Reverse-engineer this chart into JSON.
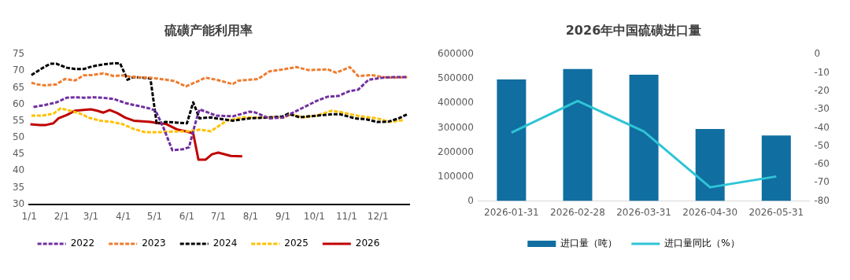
{
  "chart_data": [
    {
      "type": "line",
      "title": "硫磺产能利用率",
      "legend": "bottom",
      "grid": false,
      "xlim": [
        "--01-01",
        "--12-31"
      ],
      "xticks": [
        {
          "value": "--01-01",
          "label": "1/1"
        },
        {
          "value": "--02-01",
          "label": "2/1"
        },
        {
          "value": "--03-01",
          "label": "3/1"
        },
        {
          "value": "--04-01",
          "label": "4/1"
        },
        {
          "value": "--05-01",
          "label": "5/1"
        },
        {
          "value": "--06-01",
          "label": "6/1"
        },
        {
          "value": "--07-01",
          "label": "7/1"
        },
        {
          "value": "--08-01",
          "label": "8/1"
        },
        {
          "value": "--09-01",
          "label": "9/1"
        },
        {
          "value": "--10-01",
          "label": "10/1"
        },
        {
          "value": "--11-01",
          "label": "11/1"
        },
        {
          "value": "--12-01",
          "label": "12/1"
        }
      ],
      "ylim": [
        30,
        75
      ],
      "yticks": [
        30,
        35,
        40,
        45,
        50,
        55,
        60,
        65,
        70,
        75
      ],
      "marker": "none",
      "series": [
        {
          "name": "2022",
          "color": "#7030a0",
          "line_style": "dashed",
          "x": [
            "--01-05",
            "--01-16",
            "--01-27",
            "--02-06",
            "--02-14",
            "--02-22",
            "--03-05",
            "--03-15",
            "--03-23",
            "--04-03",
            "--04-11",
            "--04-16",
            "--04-27",
            "--05-02",
            "--05-10",
            "--05-18",
            "--05-28",
            "--06-03",
            "--06-09",
            "--06-13",
            "--06-24",
            "--06-29",
            "--07-15",
            "--07-31",
            "--08-05",
            "--08-19",
            "--09-01",
            "--09-17",
            "--10-03",
            "--10-14",
            "--10-24",
            "--11-04",
            "--11-12",
            "--11-22",
            "--12-06",
            "--12-16",
            "--12-29"
          ],
          "values": [
            59.2,
            59.8,
            60.6,
            62,
            62.1,
            62,
            62.1,
            61.9,
            61.6,
            60.4,
            59.8,
            59.5,
            58.7,
            58.1,
            52.6,
            46.2,
            46.5,
            47.1,
            54.3,
            58.5,
            57.2,
            56.6,
            56.4,
            57.8,
            57.6,
            55.8,
            56,
            58.5,
            61,
            62.3,
            62.5,
            64,
            64.4,
            67.4,
            68,
            68.2,
            68.2
          ]
        },
        {
          "name": "2023",
          "color": "#ed7d31",
          "line_style": "dashed",
          "x": [
            "--01-03",
            "--01-08",
            "--01-16",
            "--01-27",
            "--02-04",
            "--02-14",
            "--02-22",
            "--03-02",
            "--03-13",
            "--03-23",
            "--03-31",
            "--04-11",
            "--04-27",
            "--05-12",
            "--05-20",
            "--05-31",
            "--06-08",
            "--06-19",
            "--06-29",
            "--07-15",
            "--07-20",
            "--08-08",
            "--08-19",
            "--09-01",
            "--09-14",
            "--09-25",
            "--10-14",
            "--10-22",
            "--11-04",
            "--11-12",
            "--11-25",
            "--12-06",
            "--12-16",
            "--12-29"
          ],
          "values": [
            66.5,
            66,
            65.7,
            66,
            67.6,
            67.2,
            68.7,
            68.8,
            69.3,
            68.5,
            68.7,
            68.2,
            68,
            67.4,
            67,
            65.4,
            66.5,
            68,
            67.4,
            66.1,
            67.1,
            67.6,
            69.9,
            70.5,
            71.2,
            70.3,
            70.5,
            69.5,
            71.2,
            68.5,
            68.8,
            68.2,
            68,
            68.2
          ]
        },
        {
          "name": "2024",
          "color": "#000000",
          "line_style": "dashed",
          "x": [
            "--01-03",
            "--01-13",
            "--01-21",
            "--01-27",
            "--02-06",
            "--02-14",
            "--02-22",
            "--03-02",
            "--03-13",
            "--03-22",
            "--03-29",
            "--04-05",
            "--04-11",
            "--04-19",
            "--04-27",
            "--05-03",
            "--05-12",
            "--05-23",
            "--06-01",
            "--06-07",
            "--06-13",
            "--06-24",
            "--06-29",
            "--07-15",
            "--07-31",
            "--08-16",
            "--09-01",
            "--09-06",
            "--09-17",
            "--10-03",
            "--10-18",
            "--10-26",
            "--11-09",
            "--11-20",
            "--11-30",
            "--12-11",
            "--12-21",
            "--12-29"
          ],
          "values": [
            68.8,
            70.8,
            72.2,
            72.2,
            71,
            70.6,
            70.6,
            71.4,
            72,
            72.3,
            72.3,
            67.4,
            68.2,
            68,
            67.8,
            54.3,
            54.7,
            54.5,
            54.3,
            60.6,
            55.8,
            56.1,
            55.8,
            55.1,
            55.8,
            56,
            56.4,
            57.2,
            56.1,
            56.6,
            57,
            57,
            55.8,
            55.5,
            54.7,
            54.8,
            55.8,
            57
          ]
        },
        {
          "name": "2025",
          "color": "#ffc000",
          "line_style": "dashed",
          "x": [
            "--01-03",
            "--01-13",
            "--01-24",
            "--01-31",
            "--02-09",
            "--02-19",
            "--02-27",
            "--03-10",
            "--03-21",
            "--03-31",
            "--04-11",
            "--04-21",
            "--04-29",
            "--05-12",
            "--05-23",
            "--06-03",
            "--06-13",
            "--06-24",
            "--07-09",
            "--07-25",
            "--08-11",
            "--08-21",
            "--09-01",
            "--09-09",
            "--09-20",
            "--10-03",
            "--10-18",
            "--10-29",
            "--11-14",
            "--11-30",
            "--12-13",
            "--12-26"
          ],
          "values": [
            56.6,
            56.6,
            57.2,
            58.8,
            58.1,
            57.2,
            56,
            55.1,
            54.7,
            54.1,
            52.6,
            51.7,
            51.6,
            51.7,
            51.9,
            51.9,
            52.4,
            51.9,
            55.1,
            56.1,
            56,
            56.1,
            56,
            57,
            56.1,
            56.6,
            58.1,
            57.5,
            56.4,
            55.8,
            54.7,
            55.3
          ]
        },
        {
          "name": "2026",
          "color": "#c00000",
          "line_style": "solid",
          "x": [
            "--01-02",
            "--01-11",
            "--01-17",
            "--01-24",
            "--01-29",
            "--02-06",
            "--02-14",
            "--02-22",
            "--03-01",
            "--03-07",
            "--03-13",
            "--03-19",
            "--03-26",
            "--04-03",
            "--04-11",
            "--04-19",
            "--04-27",
            "--05-05",
            "--05-12",
            "--05-23",
            "--05-31",
            "--06-07",
            "--06-12",
            "--06-19",
            "--06-25",
            "--07-01",
            "--07-13",
            "--07-24"
          ],
          "values": [
            54,
            53.8,
            53.8,
            54.3,
            55.8,
            56.8,
            58.1,
            58.3,
            58.5,
            58.1,
            57.5,
            58.3,
            57.4,
            56,
            55.1,
            54.9,
            54.7,
            54.3,
            54.1,
            52.4,
            51.9,
            51.3,
            43.4,
            43.4,
            45,
            45.5,
            44.5,
            44.4
          ]
        }
      ]
    },
    {
      "type": "bar",
      "title": "2026年中国硫磺进口量",
      "legend": "bottom",
      "grid": false,
      "categories": [
        "2026-01-31",
        "2026-02-28",
        "2026-03-31",
        "2026-04-30",
        "2026-05-31"
      ],
      "ylim": [
        0,
        600000
      ],
      "yticks": [
        0,
        100000,
        200000,
        300000,
        400000,
        500000,
        600000
      ],
      "y2lim": [
        -80,
        0
      ],
      "y2ticks": [
        -80,
        -70,
        -60,
        -50,
        -40,
        -30,
        -20,
        -10,
        0
      ],
      "series": [
        {
          "name": "进口量（吨）",
          "type": "bar",
          "color": "#116ea0",
          "values": [
            498000,
            540000,
            517000,
            295000,
            268000
          ]
        },
        {
          "name": "进口量同比（%）",
          "type": "line",
          "axis": "y2",
          "color": "#2ec4d6",
          "values": [
            -42.7,
            -25.4,
            -42,
            -72.5,
            -66.6
          ]
        }
      ]
    }
  ]
}
